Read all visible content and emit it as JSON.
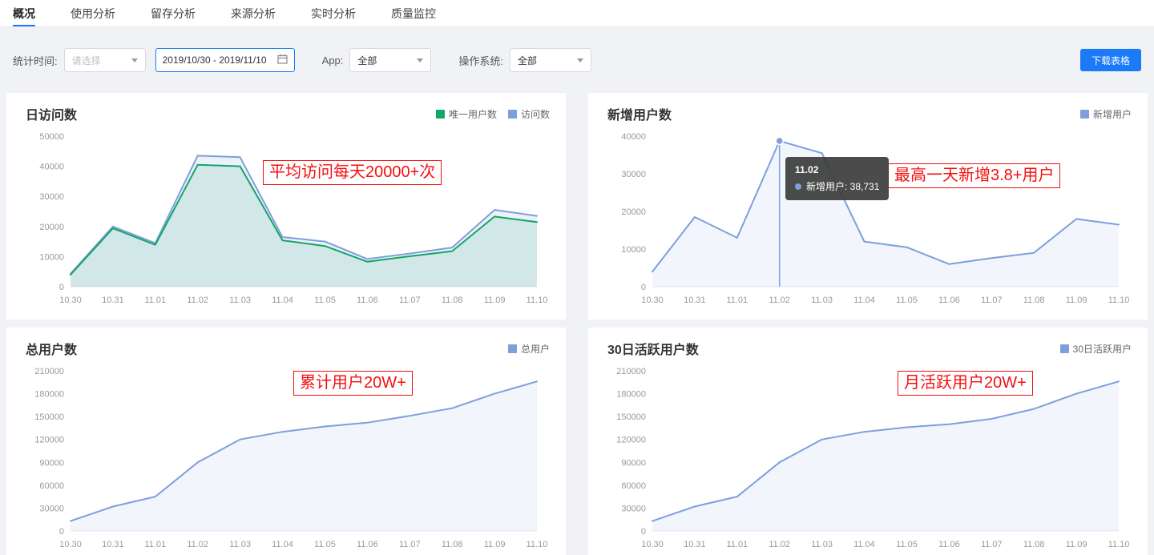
{
  "nav": {
    "tabs": [
      "概况",
      "使用分析",
      "留存分析",
      "来源分析",
      "实时分析",
      "质量监控"
    ],
    "active_tab": "概况"
  },
  "filters": {
    "time_label": "统计时间:",
    "time_placeholder": "请选择",
    "date_range": "2019/10/30 - 2019/11/10",
    "app_label": "App:",
    "app_value": "全部",
    "os_label": "操作系统:",
    "os_value": "全部",
    "download_label": "下载表格"
  },
  "colors": {
    "accent_blue": "#1a7af8",
    "tab_underline": "#1677ff",
    "annotation_red": "#f40f0f",
    "line_blue": "#7e9fdc",
    "line_green": "#12a566",
    "tooltip_bg": "rgba(60,60,60,0.92)"
  },
  "chart_data": [
    {
      "id": "daily-visits",
      "type": "line",
      "title": "日访问数",
      "categories": [
        "10.30",
        "10.31",
        "11.01",
        "11.02",
        "11.03",
        "11.04",
        "11.05",
        "11.06",
        "11.07",
        "11.08",
        "11.09",
        "11.10"
      ],
      "ymax": 50000,
      "yticks": [
        0,
        10000,
        20000,
        30000,
        40000,
        50000
      ],
      "grid": false,
      "legend_position": "top-right",
      "series": [
        {
          "name": "访问数",
          "color": "#7e9fdc",
          "fill": "rgba(126,159,220,0.14)",
          "values": [
            4300,
            20000,
            14500,
            43500,
            43000,
            16500,
            15000,
            9200,
            11000,
            13000,
            25500,
            23500
          ]
        },
        {
          "name": "唯一用户数",
          "color": "#12a566",
          "fill": "rgba(18,165,102,0.12)",
          "values": [
            4000,
            19400,
            13900,
            40500,
            40000,
            15400,
            13500,
            8300,
            10100,
            11800,
            23300,
            21500
          ]
        }
      ],
      "legend": [
        {
          "label": "唯一用户数",
          "color": "#12a566"
        },
        {
          "label": "访问数",
          "color": "#7e9fdc"
        }
      ],
      "annotation": {
        "text": "平均访问每天20000+次",
        "x": 320,
        "y": 84
      }
    },
    {
      "id": "new-users",
      "type": "line",
      "title": "新增用户数",
      "categories": [
        "10.30",
        "10.31",
        "11.01",
        "11.02",
        "11.03",
        "11.04",
        "11.05",
        "11.06",
        "11.07",
        "11.08",
        "11.09",
        "11.10"
      ],
      "ymax": 40000,
      "yticks": [
        0,
        10000,
        20000,
        30000,
        40000
      ],
      "grid": false,
      "legend_position": "top-right",
      "series": [
        {
          "name": "新增用户",
          "color": "#7e9fdc",
          "fill": "rgba(126,159,220,0.10)",
          "values": [
            4000,
            18500,
            13000,
            38731,
            35500,
            12000,
            10500,
            6000,
            7600,
            9000,
            18000,
            16500
          ]
        }
      ],
      "legend": [
        {
          "label": "新增用户",
          "color": "#7e9fdc"
        }
      ],
      "marker": {
        "index": 3
      },
      "tooltip": {
        "title": "11.02",
        "text": "新增用户: 38,731"
      },
      "annotation": {
        "text": "最高一天新增3.8+用户",
        "x": 374,
        "y": 88
      }
    },
    {
      "id": "total-users",
      "type": "line",
      "title": "总用户数",
      "categories": [
        "10.30",
        "10.31",
        "11.01",
        "11.02",
        "11.03",
        "11.04",
        "11.05",
        "11.06",
        "11.07",
        "11.08",
        "11.09",
        "11.10"
      ],
      "ymax": 210000,
      "yticks": [
        0,
        30000,
        60000,
        90000,
        120000,
        150000,
        180000,
        210000
      ],
      "grid": false,
      "legend_position": "top-right",
      "series": [
        {
          "name": "总用户",
          "color": "#7e9fdc",
          "fill": "rgba(126,159,220,0.10)",
          "values": [
            13000,
            32000,
            45000,
            90000,
            120000,
            130000,
            137000,
            142000,
            151000,
            161000,
            180000,
            196000
          ]
        }
      ],
      "legend": [
        {
          "label": "总用户",
          "color": "#7e9fdc"
        }
      ],
      "annotation": {
        "text": "累计用户20W+",
        "x": 358,
        "y": 54
      }
    },
    {
      "id": "active-users-30d",
      "type": "line",
      "title": "30日活跃用户数",
      "categories": [
        "10.30",
        "10.31",
        "11.01",
        "11.02",
        "11.03",
        "11.04",
        "11.05",
        "11.06",
        "11.07",
        "11.08",
        "11.09",
        "11.10"
      ],
      "ymax": 210000,
      "yticks": [
        0,
        30000,
        60000,
        90000,
        120000,
        150000,
        180000,
        210000
      ],
      "grid": false,
      "legend_position": "top-right",
      "series": [
        {
          "name": "30日活跃用户",
          "color": "#7e9fdc",
          "fill": "rgba(126,159,220,0.10)",
          "values": [
            13000,
            32000,
            45000,
            90000,
            120000,
            130000,
            136000,
            140000,
            147000,
            160000,
            180000,
            196000
          ]
        }
      ],
      "legend": [
        {
          "label": "30日活跃用户",
          "color": "#7e9fdc"
        }
      ],
      "annotation": {
        "text": "月活跃用户20W+",
        "x": 386,
        "y": 54
      }
    }
  ]
}
